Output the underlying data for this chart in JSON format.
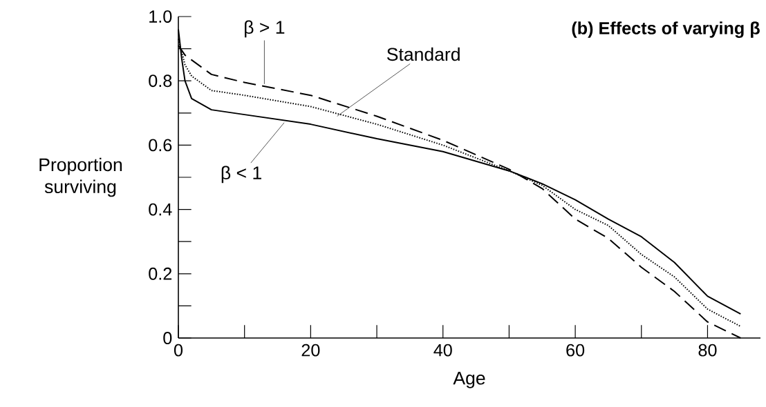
{
  "chart_data": {
    "type": "line",
    "title": "(b) Effects of varying β",
    "xlabel": "Age",
    "ylabel": "Proportion surviving",
    "x": [
      0,
      0.5,
      1,
      2,
      5,
      10,
      20,
      30,
      40,
      50,
      55,
      60,
      65,
      70,
      75,
      80,
      85
    ],
    "series": [
      {
        "color": "#000000",
        "line_style": "dashed",
        "values": [
          0.91,
          0.895,
          0.88,
          0.865,
          0.82,
          0.795,
          0.755,
          0.69,
          0.615,
          0.525,
          0.465,
          0.37,
          0.31,
          0.22,
          0.145,
          0.05,
          0.0
        ]
      },
      {
        "color": "#000000",
        "line_style": "dotted",
        "values": [
          0.93,
          0.89,
          0.85,
          0.815,
          0.77,
          0.755,
          0.72,
          0.665,
          0.6,
          0.52,
          0.475,
          0.4,
          0.35,
          0.26,
          0.19,
          0.09,
          0.036
        ]
      },
      {
        "color": "#000000",
        "line_style": "solid",
        "values": [
          0.96,
          0.87,
          0.8,
          0.745,
          0.71,
          0.695,
          0.665,
          0.62,
          0.58,
          0.52,
          0.48,
          0.43,
          0.37,
          0.315,
          0.235,
          0.13,
          0.075
        ]
      }
    ],
    "annotations": [
      {
        "text": "β > 1",
        "x": 13,
        "y": 0.79
      },
      {
        "text": "Standard",
        "x": 24,
        "y": 0.69
      },
      {
        "text": "β < 1",
        "x": 16,
        "y": 0.67
      }
    ],
    "xlim": [
      0,
      88
    ],
    "ylim": [
      0,
      1.0
    ],
    "xticks": [
      0,
      20,
      40,
      60,
      80
    ],
    "yticks": [
      0,
      0.2,
      0.4,
      0.6,
      0.8,
      {
        "value": 1.0,
        "label": "1.0"
      }
    ],
    "grid": false,
    "marker": "none"
  }
}
